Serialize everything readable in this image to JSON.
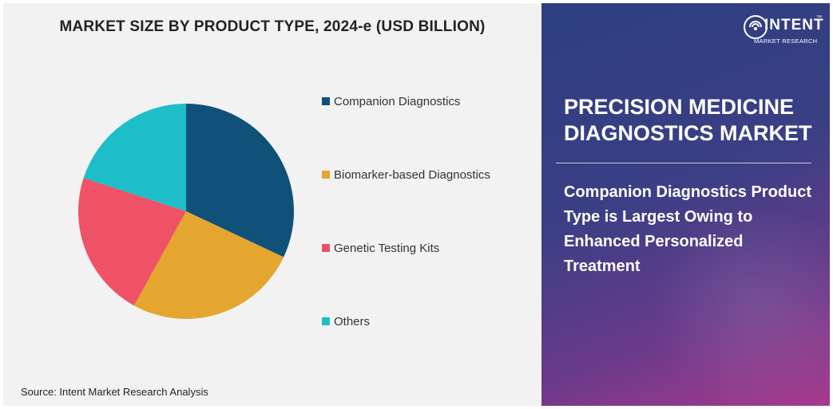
{
  "chart_data": {
    "type": "pie",
    "title": "MARKET SIZE BY PRODUCT TYPE, 2024-e (USD BILLION)",
    "categories": [
      "Companion Diagnostics",
      "Biomarker-based Diagnostics",
      "Genetic Testing Kits",
      "Others"
    ],
    "values": [
      32,
      26,
      22,
      20
    ],
    "colors": [
      "#10517a",
      "#e4a62e",
      "#ef5266",
      "#1dbec8"
    ],
    "legend_position": "right"
  },
  "source": "Source: Intent Market Research Analysis",
  "sidebar": {
    "logo_word": "INTENT",
    "logo_tm": "™",
    "logo_sub": "MARKET RESEARCH",
    "market_title": "PRECISION MEDICINE DIAGNOSTICS MARKET",
    "insight": "Companion Diagnostics Product Type is Largest Owing to Enhanced Personalized Treatment"
  }
}
